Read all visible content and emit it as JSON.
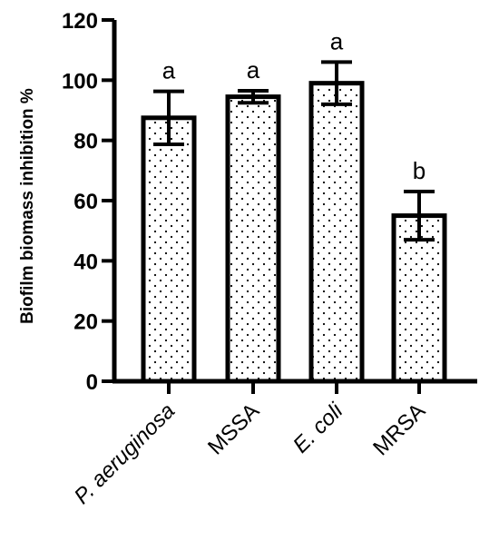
{
  "chart_data": {
    "type": "bar",
    "title": "",
    "xlabel": "",
    "ylabel": "Biofilm biomass inhibition %",
    "ylim": [
      0,
      120
    ],
    "yticks": [
      0,
      20,
      40,
      60,
      80,
      100,
      120
    ],
    "grid": false,
    "fill_pattern": "dotted",
    "categories": [
      {
        "label": "P. aeruginosa",
        "italic": true
      },
      {
        "label": "MSSA",
        "italic": false
      },
      {
        "label": "E. coli",
        "italic": true
      },
      {
        "label": "MRSA",
        "italic": false
      }
    ],
    "values": [
      87.5,
      94.5,
      99.0,
      55.0
    ],
    "error": [
      8.8,
      2.0,
      7.0,
      8.0
    ],
    "significance": [
      "a",
      "a",
      "a",
      "b"
    ]
  }
}
